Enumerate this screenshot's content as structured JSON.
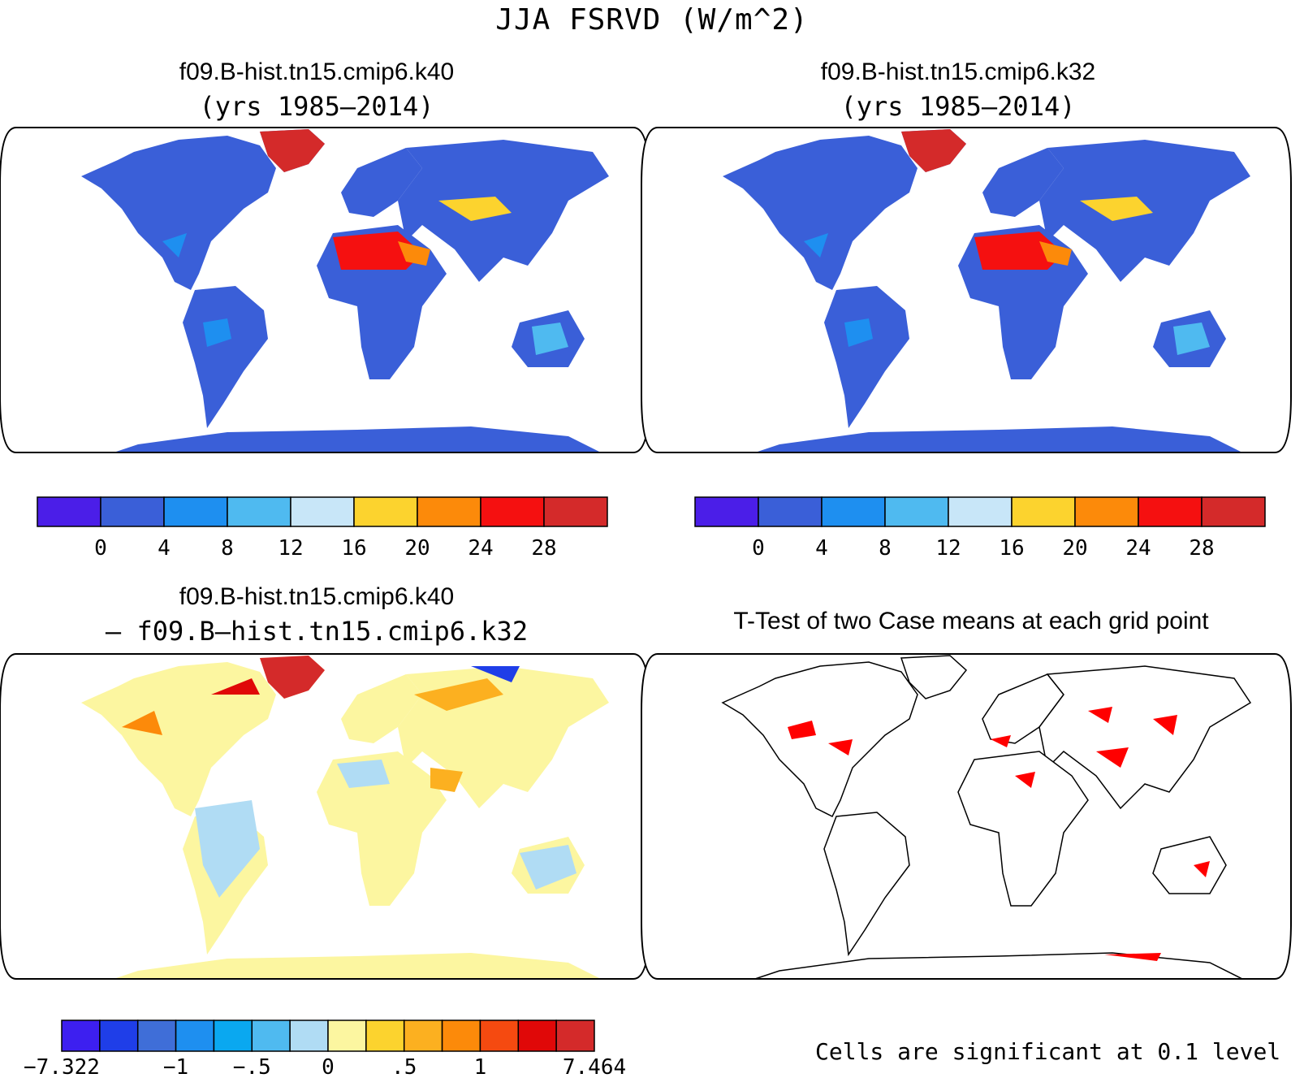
{
  "figure_title": "JJA FSRVD (W/m^2)",
  "panels": [
    {
      "id": "k40",
      "title": "f09.B-hist.tn15.cmip6.k40",
      "subtitle": "(yrs 1985–2014)"
    },
    {
      "id": "k32",
      "title": "f09.B-hist.tn15.cmip6.k32",
      "subtitle": "(yrs 1985–2014)"
    },
    {
      "id": "diff",
      "title": "f09.B-hist.tn15.cmip6.k40",
      "subtitle": "– f09.B–hist.tn15.cmip6.k32"
    },
    {
      "id": "ttest",
      "title": "T-Test of two Case means at each grid point",
      "note": "Cells are significant at 0.1 level"
    }
  ],
  "colorbar_top": {
    "labels": [
      "0",
      "4",
      "8",
      "12",
      "16",
      "20",
      "24",
      "28"
    ],
    "colors": [
      "#4b1ee8",
      "#3a5fd8",
      "#1e8ff0",
      "#4fbaf0",
      "#c8e6f8",
      "#fcd32e",
      "#fc8a0a",
      "#f51010",
      "#d42a2a"
    ]
  },
  "colorbar_diff": {
    "labels": [
      "−7.322",
      "−1",
      "−.5",
      "0",
      ".5",
      "1",
      "7.464"
    ],
    "colors": [
      "#3d1ff0",
      "#1f3ee8",
      "#3f6ed8",
      "#1e8ff0",
      "#0aa8f0",
      "#4fbaf0",
      "#b0dcf4",
      "#fcf6a0",
      "#fcd32e",
      "#fcb020",
      "#fc8a0a",
      "#f54a10",
      "#e00808",
      "#d42a2a"
    ]
  },
  "map_colors": {
    "land_base": "#3a5fd8",
    "land_mid": "#1e8ff0",
    "desert_hot": "#f51010",
    "desert_warm": "#fc8a0a",
    "greenland": "#d42a2a",
    "diff_base": "#fcf6a0",
    "diff_cool": "#b0dcf4",
    "diff_warm": "#fcb020",
    "signif": "#ff0000"
  }
}
